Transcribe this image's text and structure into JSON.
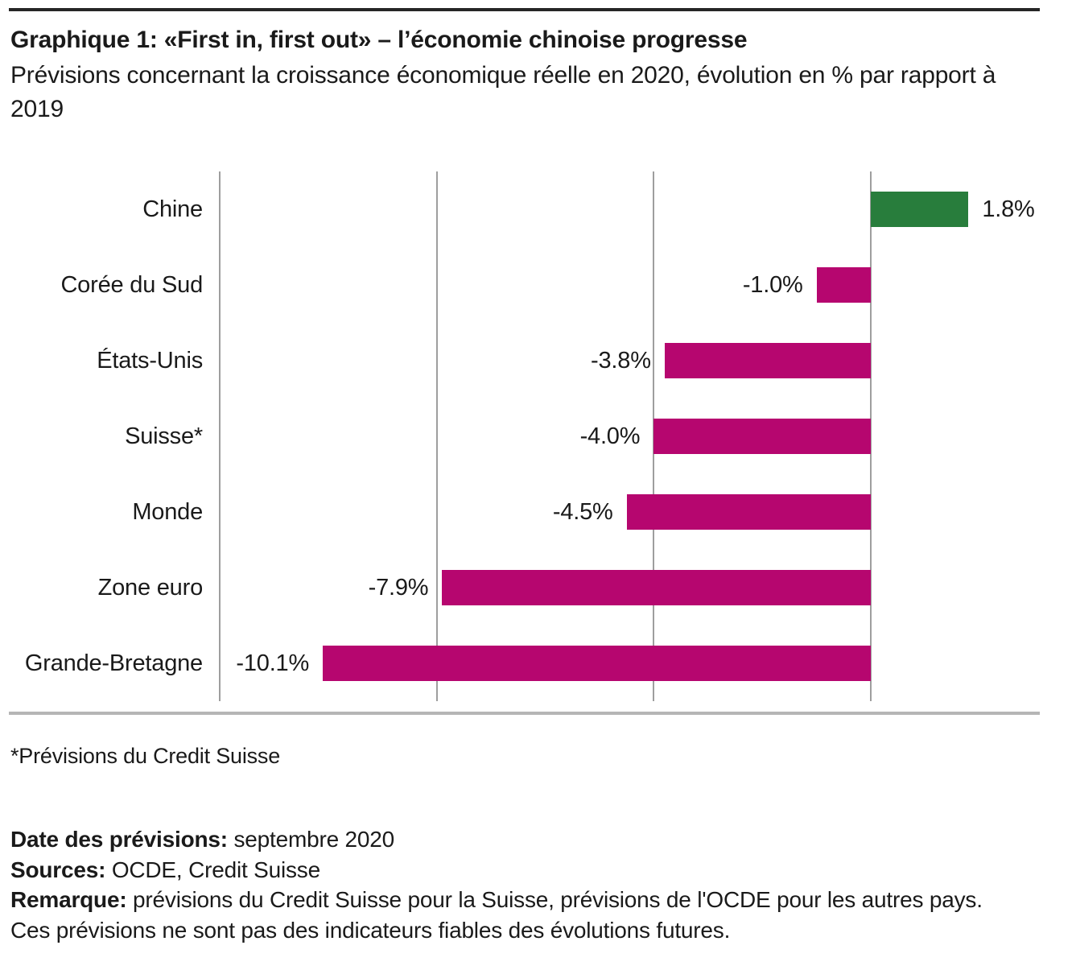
{
  "header": {
    "title": "Graphique 1: «First in, first out» – l’économie chinoise progresse",
    "subtitle": "Prévisions concernant la croissance économique réelle en 2020, évolution en % par rapport à 2019"
  },
  "chart_data": {
    "type": "bar",
    "orientation": "horizontal",
    "title": "Graphique 1: «First in, first out» – l’économie chinoise progresse",
    "subtitle": "Prévisions concernant la croissance économique réelle en 2020, évolution en % par rapport à 2019",
    "unit": "%",
    "categories": [
      "Chine",
      "Corée du Sud",
      "États-Unis",
      "Suisse*",
      "Monde",
      "Zone euro",
      "Grande-Bretagne"
    ],
    "values": [
      1.8,
      -1.0,
      -3.8,
      -4.0,
      -4.5,
      -7.9,
      -10.1
    ],
    "value_labels": [
      "1.8%",
      "-1.0%",
      "-3.8%",
      "-4.0%",
      "-4.5%",
      "-7.9%",
      "-10.1%"
    ],
    "xlim": [
      -12,
      3.8
    ],
    "gridlines": [
      -12,
      -8,
      -4,
      0
    ],
    "grid": true,
    "legend": false,
    "positive_color": "#287d3c",
    "negative_color": "#b6066f",
    "gridline_color": "#9e9e9e"
  },
  "footnote": "*Prévisions du Credit Suisse",
  "notes": [
    {
      "label": "Date des prévisions:",
      "text": " septembre 2020"
    },
    {
      "label": "Sources:",
      "text": " OCDE, Credit Suisse"
    },
    {
      "label": "Remarque:",
      "text": " prévisions du Credit Suisse pour la Suisse, prévisions de l'OCDE pour les autres pays."
    },
    {
      "label": "",
      "text": "Ces prévisions ne sont pas des indicateurs fiables des évolutions futures."
    }
  ]
}
